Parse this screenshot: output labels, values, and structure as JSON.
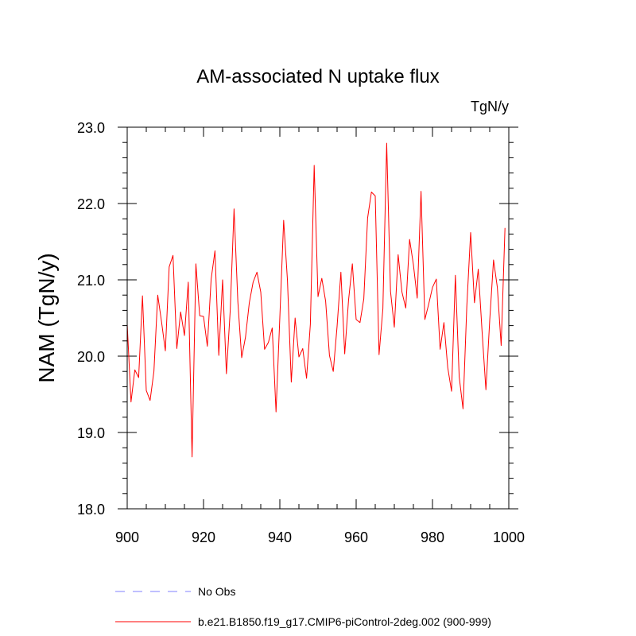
{
  "chart_data": {
    "type": "line",
    "title": "AM-associated N uptake flux",
    "units_label": "TgN/y",
    "ylabel": "NAM  (TgN/y)",
    "xlabel": "",
    "xlim": [
      900,
      1000
    ],
    "ylim": [
      18.0,
      23.0
    ],
    "x_ticks": [
      900,
      920,
      940,
      960,
      980,
      1000
    ],
    "y_ticks": [
      "18.0",
      "19.0",
      "20.0",
      "21.0",
      "22.0",
      "23.0"
    ],
    "series": [
      {
        "name": "b.e21.B1850.f19_g17.CMIP6-piControl-2deg.002 (900-999)",
        "color": "#ff0000",
        "style": "solid",
        "x": [
          900,
          901,
          902,
          903,
          904,
          905,
          906,
          907,
          908,
          909,
          910,
          911,
          912,
          913,
          914,
          915,
          916,
          917,
          918,
          919,
          920,
          921,
          922,
          923,
          924,
          925,
          926,
          927,
          928,
          929,
          930,
          931,
          932,
          933,
          934,
          935,
          936,
          937,
          938,
          939,
          940,
          941,
          942,
          943,
          944,
          945,
          946,
          947,
          948,
          949,
          950,
          951,
          952,
          953,
          954,
          955,
          956,
          957,
          958,
          959,
          960,
          961,
          962,
          963,
          964,
          965,
          966,
          967,
          968,
          969,
          970,
          971,
          972,
          973,
          974,
          975,
          976,
          977,
          978,
          979,
          980,
          981,
          982,
          983,
          984,
          985,
          986,
          987,
          988,
          989,
          990,
          991,
          992,
          993,
          994,
          995,
          996,
          997,
          998,
          999
        ],
        "values": [
          20.42,
          19.4,
          19.82,
          19.72,
          20.79,
          19.55,
          19.42,
          19.8,
          20.8,
          20.45,
          20.07,
          21.17,
          21.32,
          20.1,
          20.58,
          20.27,
          20.97,
          18.68,
          21.21,
          20.53,
          20.52,
          20.13,
          21.01,
          21.38,
          20.01,
          21.0,
          19.77,
          20.6,
          21.93,
          20.71,
          19.98,
          20.25,
          20.7,
          20.97,
          21.1,
          20.84,
          20.09,
          20.18,
          20.37,
          19.27,
          20.51,
          21.78,
          20.99,
          19.66,
          20.5,
          19.99,
          20.1,
          19.71,
          20.42,
          22.5,
          20.78,
          21.02,
          20.72,
          20.01,
          19.8,
          20.39,
          21.1,
          20.03,
          20.73,
          21.21,
          20.48,
          20.44,
          20.75,
          21.81,
          22.15,
          22.1,
          20.02,
          20.62,
          22.79,
          20.85,
          20.38,
          21.33,
          20.84,
          20.63,
          21.53,
          21.2,
          20.76,
          22.16,
          20.48,
          20.68,
          20.9,
          21.01,
          20.09,
          20.44,
          19.85,
          19.54,
          21.06,
          19.73,
          19.31,
          20.66,
          21.62,
          20.7,
          21.14,
          20.32,
          19.56,
          20.47,
          21.26,
          20.9,
          20.14,
          21.68
        ]
      }
    ],
    "legend": {
      "position": "bottom",
      "entries": [
        {
          "label": "No Obs",
          "color": "#8080ff",
          "style": "dashed"
        },
        {
          "label": "b.e21.B1850.f19_g17.CMIP6-piControl-2deg.002 (900-999)",
          "color": "#ff0000",
          "style": "solid"
        }
      ]
    }
  }
}
